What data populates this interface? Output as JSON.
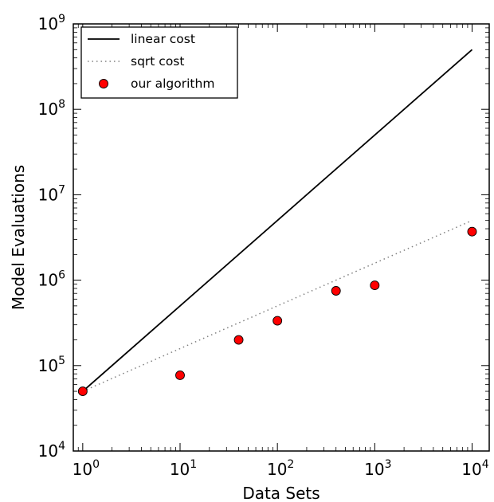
{
  "chart_data": {
    "type": "scatter",
    "xlabel": "Data Sets",
    "ylabel": "Model Evaluations",
    "xscale": "log",
    "yscale": "log",
    "xlim": [
      0.8,
      15000
    ],
    "ylim": [
      10000,
      1000000000
    ],
    "x_ticks": [
      {
        "base": "10",
        "exp": "0",
        "value": 1
      },
      {
        "base": "10",
        "exp": "1",
        "value": 10
      },
      {
        "base": "10",
        "exp": "2",
        "value": 100
      },
      {
        "base": "10",
        "exp": "3",
        "value": 1000
      },
      {
        "base": "10",
        "exp": "4",
        "value": 10000
      }
    ],
    "y_ticks": [
      {
        "base": "10",
        "exp": "4",
        "value": 10000
      },
      {
        "base": "10",
        "exp": "5",
        "value": 100000
      },
      {
        "base": "10",
        "exp": "6",
        "value": 1000000
      },
      {
        "base": "10",
        "exp": "7",
        "value": 10000000
      },
      {
        "base": "10",
        "exp": "8",
        "value": 100000000
      },
      {
        "base": "10",
        "exp": "9",
        "value": 1000000000
      }
    ],
    "grid": false,
    "legend_position": "top-left",
    "series": [
      {
        "name": "linear cost",
        "kind": "line",
        "style": "solid",
        "color": "#000000",
        "x": [
          1,
          10000
        ],
        "y": [
          50000,
          500000000
        ]
      },
      {
        "name": "sqrt cost",
        "kind": "line",
        "style": "dotted",
        "color": "#808080",
        "x": [
          1,
          10000
        ],
        "y": [
          50000,
          5000000
        ]
      },
      {
        "name": "our algorithm",
        "kind": "scatter",
        "color": "#ff0000",
        "x": [
          1,
          10,
          40,
          100,
          400,
          1000,
          10000
        ],
        "y": [
          50000,
          77000,
          200000,
          335000,
          750000,
          870000,
          3700000
        ]
      }
    ]
  }
}
